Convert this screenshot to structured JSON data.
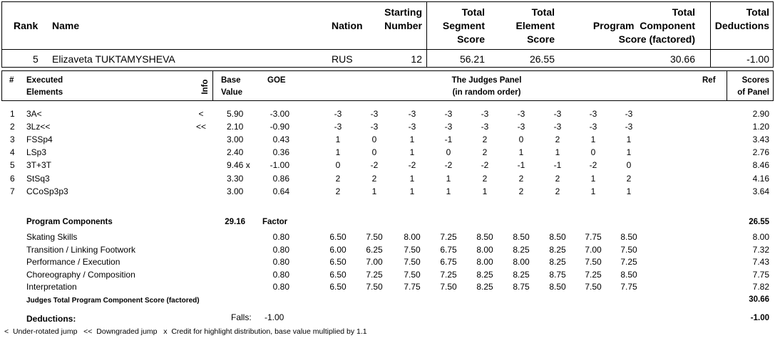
{
  "summary": {
    "headers": {
      "rank": "Rank",
      "name": "Name",
      "nation": "Nation",
      "starting_number": [
        "Starting",
        "Number"
      ],
      "total_segment_score": [
        "Total",
        "Segment",
        "Score"
      ],
      "total_element_score": [
        "Total",
        "Element",
        "Score"
      ],
      "program_component_score": [
        "Total",
        "Program  Component",
        "Score (factored)"
      ],
      "total_deductions": [
        "Total",
        "Deductions"
      ]
    },
    "values": {
      "rank": "5",
      "name": "Elizaveta TUKTAMYSHEVA",
      "nation": "RUS",
      "starting_number": "12",
      "total_segment_score": "56.21",
      "total_element_score": "26.55",
      "program_component_score": "30.66",
      "total_deductions": "-1.00"
    }
  },
  "elements_header": {
    "num": "#",
    "executed": [
      "Executed",
      "Elements"
    ],
    "info": "Info",
    "base_value": [
      "Base",
      "Value"
    ],
    "goe": "GOE",
    "judges_panel": [
      "The Judges Panel",
      "(in random order)"
    ],
    "ref": "Ref",
    "scores": [
      "Scores",
      "of Panel"
    ]
  },
  "elements": [
    {
      "num": "1",
      "name": "3A<",
      "info": "<",
      "base": "5.90",
      "goe": "-3.00",
      "judges": [
        "-3",
        "-3",
        "-3",
        "-3",
        "-3",
        "-3",
        "-3",
        "-3",
        "-3"
      ],
      "score": "2.90"
    },
    {
      "num": "2",
      "name": "3Lz<<",
      "info": "<<",
      "base": "2.10",
      "goe": "-0.90",
      "judges": [
        "-3",
        "-3",
        "-3",
        "-3",
        "-3",
        "-3",
        "-3",
        "-3",
        "-3"
      ],
      "score": "1.20"
    },
    {
      "num": "3",
      "name": "FSSp4",
      "info": "",
      "base": "3.00",
      "goe": "0.43",
      "judges": [
        "1",
        "0",
        "1",
        "-1",
        "2",
        "0",
        "2",
        "1",
        "1"
      ],
      "score": "3.43"
    },
    {
      "num": "4",
      "name": "LSp3",
      "info": "",
      "base": "2.40",
      "goe": "0.36",
      "judges": [
        "1",
        "0",
        "1",
        "0",
        "2",
        "1",
        "1",
        "0",
        "1"
      ],
      "score": "2.76"
    },
    {
      "num": "5",
      "name": "3T+3T",
      "info": "",
      "base": "9.46 x",
      "goe": "-1.00",
      "judges": [
        "0",
        "-2",
        "-2",
        "-2",
        "-2",
        "-1",
        "-1",
        "-2",
        "0"
      ],
      "score": "8.46"
    },
    {
      "num": "6",
      "name": "StSq3",
      "info": "",
      "base": "3.30",
      "goe": "0.86",
      "judges": [
        "2",
        "2",
        "1",
        "1",
        "2",
        "2",
        "2",
        "1",
        "2"
      ],
      "score": "4.16"
    },
    {
      "num": "7",
      "name": "CCoSp3p3",
      "info": "",
      "base": "3.00",
      "goe": "0.64",
      "judges": [
        "2",
        "1",
        "1",
        "1",
        "1",
        "2",
        "2",
        "1",
        "1"
      ],
      "score": "3.64"
    }
  ],
  "elements_totals": {
    "base": "29.16",
    "score": "26.55"
  },
  "components_header": {
    "title": "Program Components",
    "factor": "Factor"
  },
  "components": [
    {
      "name": "Skating Skills",
      "factor": "0.80",
      "judges": [
        "6.50",
        "7.50",
        "8.00",
        "7.25",
        "8.50",
        "8.50",
        "8.50",
        "7.75",
        "8.50"
      ],
      "score": "8.00"
    },
    {
      "name": "Transition / Linking Footwork",
      "factor": "0.80",
      "judges": [
        "6.00",
        "6.25",
        "7.50",
        "6.75",
        "8.00",
        "8.25",
        "8.25",
        "7.00",
        "7.50"
      ],
      "score": "7.32"
    },
    {
      "name": "Performance / Execution",
      "factor": "0.80",
      "judges": [
        "6.50",
        "7.00",
        "7.50",
        "6.75",
        "8.00",
        "8.00",
        "8.25",
        "7.50",
        "7.25"
      ],
      "score": "7.43"
    },
    {
      "name": "Choreography / Composition",
      "factor": "0.80",
      "judges": [
        "6.50",
        "7.25",
        "7.50",
        "7.25",
        "8.25",
        "8.25",
        "8.75",
        "7.25",
        "8.50"
      ],
      "score": "7.75"
    },
    {
      "name": "Interpretation",
      "factor": "0.80",
      "judges": [
        "6.50",
        "7.50",
        "7.75",
        "7.50",
        "8.25",
        "8.75",
        "8.50",
        "7.50",
        "7.75"
      ],
      "score": "7.82"
    }
  ],
  "components_total": {
    "label": "Judges Total Program Component Score (factored)",
    "score": "30.66"
  },
  "deductions": {
    "label": "Deductions:",
    "falls_label": "Falls:",
    "falls_value": "-1.00",
    "total": "-1.00"
  },
  "footnote": "<  Under-rotated jump   <<  Downgraded jump   x  Credit for highlight distribution, base value multiplied by 1.1"
}
